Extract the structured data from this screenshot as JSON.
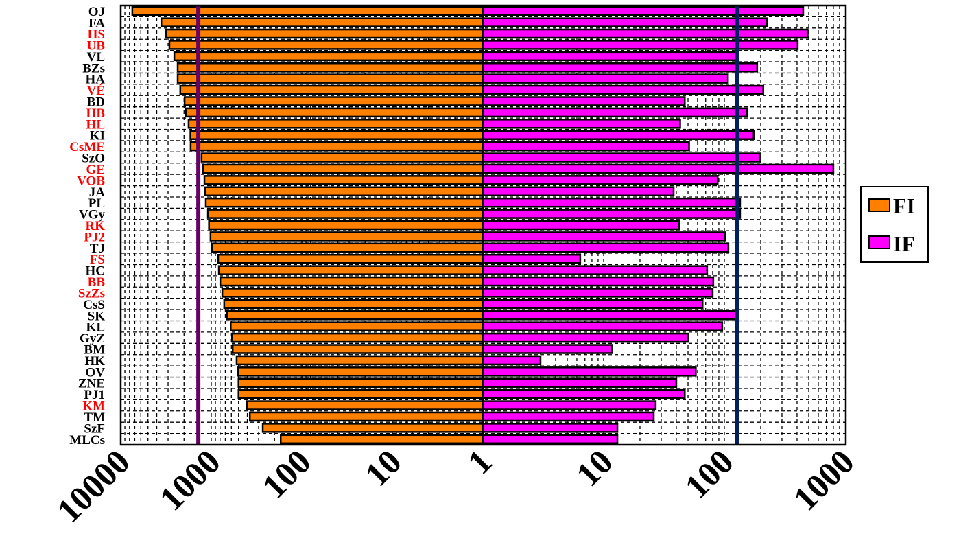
{
  "chart_data": {
    "type": "bar",
    "orientation": "horizontal-diverging",
    "title": "",
    "xlabel": "",
    "ylabel": "",
    "x_scale": "log",
    "left_axis": {
      "ticks": [
        "10000",
        "1000",
        "100",
        "10",
        "1"
      ],
      "range": [
        10000,
        1
      ]
    },
    "right_axis": {
      "ticks": [
        "10",
        "100",
        "1000"
      ],
      "range": [
        1,
        1000
      ]
    },
    "grid": true,
    "legend": {
      "placement": "right",
      "entries": [
        "FI",
        "IF"
      ]
    },
    "colors": {
      "FI": "#FF8000",
      "IF": "#FF00FF",
      "ref_left": "#660066",
      "ref_right": "#002060",
      "label_red": "#FF0000",
      "label_black": "#000000"
    },
    "reference_lines": {
      "FI": 1390,
      "IF": 128
    },
    "categories": [
      "OJ",
      "FA",
      "HS",
      "UB",
      "VL",
      "BZs",
      "HA",
      "VÉ",
      "BD",
      "HB",
      "HL",
      "KI",
      "CsME",
      "SzO",
      "GE",
      "VOB",
      "JA",
      "PL",
      "VGy",
      "RK",
      "PJ2",
      "TJ",
      "FS",
      "HC",
      "BB",
      "SzZs",
      "CsS",
      "SK",
      "KL",
      "GyZ",
      "BM",
      "HK",
      "OV",
      "ZNE",
      "PJ1",
      "KM",
      "TM",
      "SzF",
      "MLCs"
    ],
    "highlighted": [
      "HS",
      "UB",
      "VÉ",
      "HB",
      "HL",
      "CsME",
      "GE",
      "VOB",
      "RK",
      "PJ2",
      "FS",
      "BB",
      "SzZs",
      "KM"
    ],
    "series": [
      {
        "name": "FI",
        "side": "left",
        "values": [
          7450,
          3560,
          3170,
          2900,
          2560,
          2350,
          2350,
          2200,
          1970,
          1900,
          1780,
          1700,
          1690,
          1280,
          1230,
          1190,
          1170,
          1150,
          1090,
          1060,
          1020,
          980,
          840,
          825,
          795,
          755,
          720,
          670,
          610,
          590,
          580,
          525,
          505,
          500,
          500,
          405,
          375,
          270,
          171
        ]
      },
      {
        "name": "IF",
        "side": "right",
        "values": [
          450,
          225,
          490,
          405,
          125,
          187,
          107,
          210,
          47,
          154,
          43,
          175,
          51,
          198,
          800,
          88,
          38,
          135,
          135,
          42,
          101,
          108,
          6.4,
          72,
          81,
          80,
          66,
          125,
          96,
          50,
          11.7,
          3.0,
          58,
          40,
          47,
          27,
          26,
          13,
          13
        ]
      }
    ]
  }
}
